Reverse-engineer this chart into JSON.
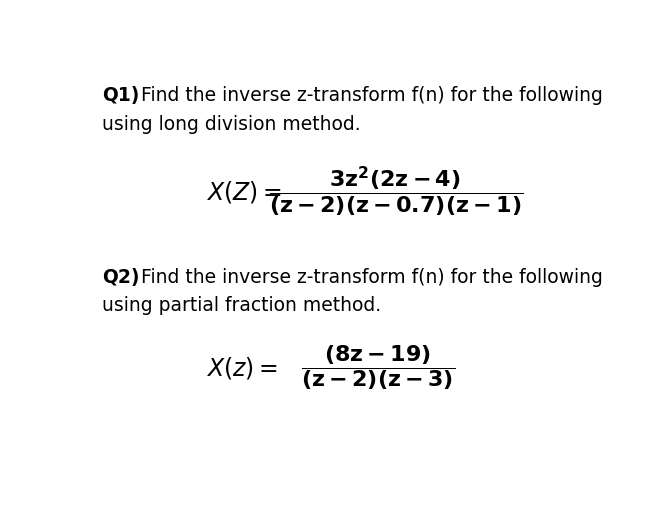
{
  "background_color": "#ffffff",
  "figsize": [
    6.72,
    5.3
  ],
  "dpi": 100,
  "text_color": "#000000",
  "font_size_text": 13.5,
  "font_size_formula": 16,
  "q1_bold": "Q1)",
  "q1_rest": " Find the inverse z-transform f(n) for the following",
  "q1_line2": "using long division method.",
  "q2_bold": "Q2)",
  "q2_rest": " Find the inverse z-transform f(n) for the following",
  "q2_line2": "using partial fraction method.",
  "q1_lhs": "$\\mathbf{\\mathit{X}(Z) =}$",
  "q1_frac": "$\\dfrac{\\mathbf{3z^2(2z - 4)}}{\\mathbf{(z - 2)(z - 0.7)(z - 1)}}$",
  "q2_lhs": "$\\mathbf{\\mathit{X}(z) =}$",
  "q2_frac": "$\\dfrac{\\mathbf{(8z - 19)}}{\\mathbf{(z - 2)(z - 3)}}$"
}
